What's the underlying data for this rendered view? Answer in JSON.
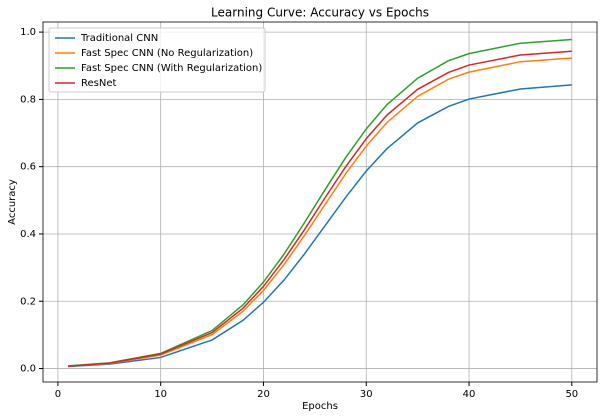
{
  "chart_data": {
    "type": "line",
    "title": "Learning Curve: Accuracy vs Epochs",
    "x_label": "Epochs",
    "y_label": "Accuracy",
    "x": [
      1,
      5,
      10,
      15,
      18,
      20,
      22,
      24,
      26,
      28,
      30,
      32,
      35,
      38,
      40,
      45,
      50
    ],
    "series": [
      {
        "name": "Traditional CNN",
        "color": "#1f77b4",
        "values": [
          0.006,
          0.013,
          0.033,
          0.085,
          0.143,
          0.197,
          0.263,
          0.341,
          0.425,
          0.509,
          0.587,
          0.653,
          0.73,
          0.779,
          0.801,
          0.831,
          0.843
        ]
      },
      {
        "name": "Fast Spec CNN (No Regularization)",
        "color": "#ff7f0e",
        "values": [
          0.007,
          0.015,
          0.04,
          0.101,
          0.17,
          0.232,
          0.309,
          0.396,
          0.488,
          0.579,
          0.661,
          0.731,
          0.809,
          0.86,
          0.881,
          0.912,
          0.923
        ]
      },
      {
        "name": "Fast Spec CNN (With Regularization)",
        "color": "#2ca02c",
        "values": [
          0.008,
          0.017,
          0.045,
          0.113,
          0.189,
          0.257,
          0.34,
          0.434,
          0.532,
          0.627,
          0.712,
          0.784,
          0.863,
          0.915,
          0.936,
          0.967,
          0.978
        ]
      },
      {
        "name": "ResNet",
        "color": "#d62728",
        "values": [
          0.007,
          0.016,
          0.043,
          0.107,
          0.179,
          0.244,
          0.324,
          0.413,
          0.508,
          0.6,
          0.683,
          0.753,
          0.83,
          0.88,
          0.902,
          0.932,
          0.943
        ]
      }
    ],
    "xlim": [
      -1.45,
      52.45
    ],
    "xticks": [
      0,
      10,
      20,
      30,
      40,
      50
    ],
    "ylim": [
      -0.04,
      1.03
    ],
    "yticks": [
      {
        "value": 0,
        "label": "0.0"
      },
      {
        "value": 0.2,
        "label": "0.2"
      },
      {
        "value": 0.4,
        "label": "0.4"
      },
      {
        "value": 0.6,
        "label": "0.6"
      },
      {
        "value": 0.8,
        "label": "0.8"
      },
      {
        "value": 1,
        "label": "1.0"
      }
    ],
    "grid": true,
    "legend": "upper left"
  }
}
